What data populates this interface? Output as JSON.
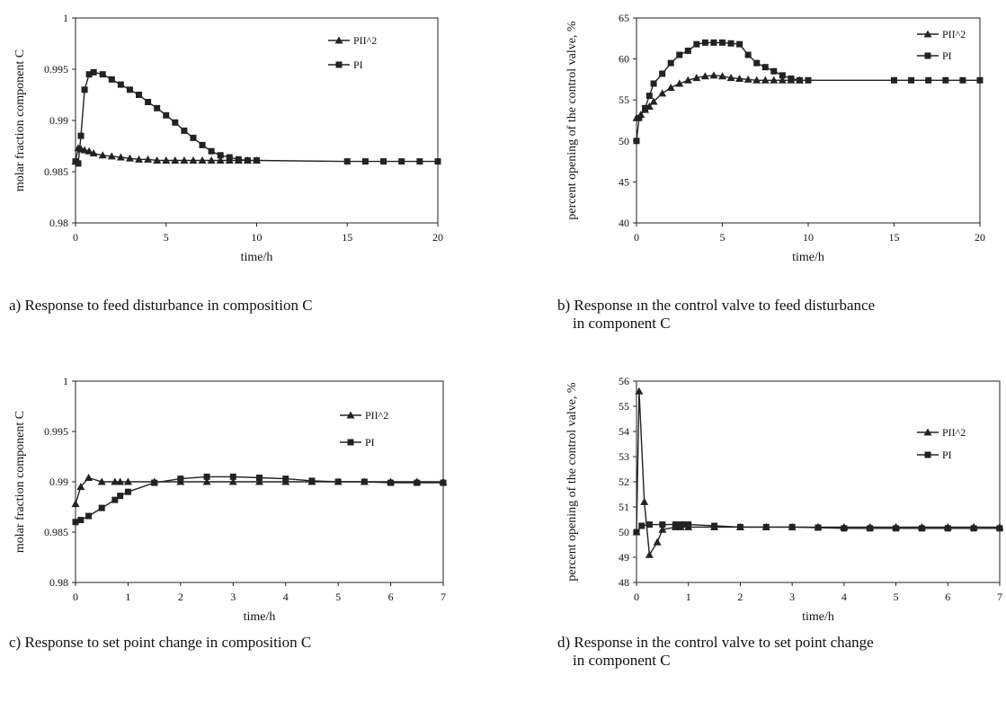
{
  "charts": [
    {
      "type": "line",
      "ylabel": "molar fraction component C",
      "xlabel": "time/h",
      "xlim": [
        0,
        20
      ],
      "ylim": [
        0.98,
        1
      ],
      "xticks": [
        0,
        5,
        10,
        15,
        20
      ],
      "yticks": [
        0.98,
        0.985,
        0.99,
        0.995,
        1
      ],
      "ytick_labels": [
        "0.98",
        "0.985",
        "0.99",
        "0.995",
        "1"
      ],
      "grid": false,
      "legend_position": "top-right",
      "series": [
        {
          "name": "PII^2",
          "marker": "triangle",
          "x": [
            0,
            0.15,
            0.3,
            0.5,
            0.75,
            1,
            1.5,
            2,
            2.5,
            3,
            3.5,
            4,
            4.5,
            5,
            5.5,
            6,
            6.5,
            7,
            7.5,
            8,
            8.5,
            9,
            9.5,
            10
          ],
          "y": [
            0.986,
            0.9873,
            0.9872,
            0.9871,
            0.987,
            0.9868,
            0.9866,
            0.9865,
            0.9864,
            0.9863,
            0.9862,
            0.9862,
            0.9861,
            0.9861,
            0.9861,
            0.9861,
            0.9861,
            0.9861,
            0.9861,
            0.9861,
            0.9861,
            0.9861,
            0.9861,
            0.9861
          ]
        },
        {
          "name": "PI",
          "marker": "square",
          "x": [
            0,
            0.15,
            0.3,
            0.5,
            0.75,
            1,
            1.5,
            2,
            2.5,
            3,
            3.5,
            4,
            4.5,
            5,
            5.5,
            6,
            6.5,
            7,
            7.5,
            8,
            8.5,
            9,
            9.5,
            10,
            15,
            16,
            17,
            18,
            19,
            20
          ],
          "y": [
            0.986,
            0.9858,
            0.9885,
            0.993,
            0.9945,
            0.9947,
            0.9945,
            0.994,
            0.9935,
            0.993,
            0.9925,
            0.9918,
            0.9912,
            0.9905,
            0.9898,
            0.989,
            0.9883,
            0.9876,
            0.987,
            0.9866,
            0.9864,
            0.9862,
            0.9861,
            0.9861,
            0.986,
            0.986,
            0.986,
            0.986,
            0.986,
            0.986
          ]
        }
      ]
    },
    {
      "type": "line",
      "ylabel": "percent opening of the control valve, %",
      "xlabel": "time/h",
      "xlim": [
        0,
        20
      ],
      "ylim": [
        40,
        65
      ],
      "xticks": [
        0,
        5,
        10,
        15,
        20
      ],
      "yticks": [
        40,
        45,
        50,
        55,
        60,
        65
      ],
      "ytick_labels": [
        "40",
        "45",
        "50",
        "55",
        "60",
        "65"
      ],
      "grid": false,
      "legend_position": "top-right",
      "series": [
        {
          "name": "PII^2",
          "marker": "triangle",
          "x": [
            0,
            0.25,
            0.5,
            0.75,
            1,
            1.5,
            2,
            2.5,
            3,
            3.5,
            4,
            4.5,
            5,
            5.5,
            6,
            6.5,
            7,
            7.5,
            8,
            8.5,
            9,
            9.5
          ],
          "y": [
            52.8,
            53.2,
            53.8,
            54.2,
            54.8,
            55.8,
            56.5,
            57.0,
            57.4,
            57.7,
            57.9,
            58.0,
            57.9,
            57.7,
            57.6,
            57.5,
            57.4,
            57.4,
            57.4,
            57.4,
            57.4,
            57.4
          ]
        },
        {
          "name": "PI",
          "marker": "square",
          "x": [
            0,
            0.15,
            0.5,
            0.75,
            1,
            1.5,
            2,
            2.5,
            3,
            3.5,
            4,
            4.5,
            5,
            5.5,
            6,
            6.5,
            7,
            7.5,
            8,
            8.5,
            9,
            9.5,
            10,
            15,
            16,
            17,
            18,
            19,
            20
          ],
          "y": [
            50,
            52.8,
            54,
            55.5,
            57,
            58.2,
            59.5,
            60.5,
            61.0,
            61.8,
            62.0,
            62.0,
            62.0,
            61.9,
            61.8,
            60.5,
            59.5,
            59.0,
            58.5,
            58.0,
            57.6,
            57.4,
            57.4,
            57.4,
            57.4,
            57.4,
            57.4,
            57.4,
            57.4
          ]
        }
      ]
    },
    {
      "type": "line",
      "ylabel": "molar fraction component C",
      "xlabel": "time/h",
      "xlim": [
        0,
        7
      ],
      "ylim": [
        0.98,
        1
      ],
      "xticks": [
        0,
        1,
        2,
        3,
        4,
        5,
        6,
        7
      ],
      "yticks": [
        0.98,
        0.985,
        0.99,
        0.995,
        1
      ],
      "ytick_labels": [
        "0.98",
        "0.985",
        "0.99",
        "0.995",
        "1"
      ],
      "grid": false,
      "legend_position": "right",
      "series": [
        {
          "name": "PII^2",
          "marker": "triangle",
          "x": [
            0,
            0.1,
            0.25,
            0.5,
            0.75,
            0.85,
            1,
            1.5,
            2,
            2.5,
            3,
            3.5,
            4,
            4.5,
            5,
            5.5,
            6,
            6.5,
            7
          ],
          "y": [
            0.9878,
            0.9895,
            0.9904,
            0.99,
            0.99,
            0.99,
            0.99,
            0.99,
            0.99,
            0.99,
            0.99,
            0.99,
            0.99,
            0.99,
            0.99,
            0.99,
            0.99,
            0.99,
            0.99
          ]
        },
        {
          "name": "PI",
          "marker": "square",
          "x": [
            0,
            0.1,
            0.25,
            0.5,
            0.75,
            0.85,
            1,
            1.5,
            2,
            2.5,
            3,
            3.5,
            4,
            4.5,
            5,
            5.5,
            6,
            6.5,
            7
          ],
          "y": [
            0.986,
            0.9862,
            0.9866,
            0.9874,
            0.9882,
            0.9886,
            0.989,
            0.9899,
            0.9903,
            0.9905,
            0.9905,
            0.9904,
            0.9903,
            0.9901,
            0.99,
            0.99,
            0.9899,
            0.9899,
            0.9899
          ]
        }
      ]
    },
    {
      "type": "line",
      "ylabel": "percent opening of the control valve, %",
      "xlabel": "time/h",
      "xlim": [
        0,
        7
      ],
      "ylim": [
        48,
        56
      ],
      "xticks": [
        0,
        1,
        2,
        3,
        4,
        5,
        6,
        7
      ],
      "yticks": [
        48,
        49,
        50,
        51,
        52,
        53,
        54,
        55,
        56
      ],
      "ytick_labels": [
        "48",
        "49",
        "50",
        "51",
        "52",
        "53",
        "54",
        "55",
        "56"
      ],
      "grid": false,
      "legend_position": "right",
      "series": [
        {
          "name": "PII^2",
          "marker": "triangle",
          "x": [
            0,
            0.05,
            0.15,
            0.25,
            0.4,
            0.5,
            0.75,
            0.85,
            1,
            1.5,
            2,
            2.5,
            3,
            3.5,
            4,
            4.5,
            5,
            5.5,
            6,
            6.5,
            7
          ],
          "y": [
            50,
            55.6,
            51.2,
            49.1,
            49.6,
            50.1,
            50.2,
            50.2,
            50.2,
            50.2,
            50.2,
            50.2,
            50.2,
            50.2,
            50.2,
            50.2,
            50.2,
            50.2,
            50.2,
            50.2,
            50.2
          ]
        },
        {
          "name": "PI",
          "marker": "square",
          "x": [
            0,
            0.1,
            0.25,
            0.5,
            0.75,
            0.85,
            0.9,
            1,
            1.5,
            2,
            2.5,
            3,
            3.5,
            4,
            4.5,
            5,
            5.5,
            6,
            6.5,
            7
          ],
          "y": [
            50,
            50.25,
            50.3,
            50.3,
            50.3,
            50.3,
            50.3,
            50.3,
            50.25,
            50.2,
            50.2,
            50.2,
            50.18,
            50.15,
            50.15,
            50.15,
            50.15,
            50.15,
            50.15,
            50.15
          ]
        }
      ]
    }
  ],
  "captions": [
    "a) Response to feed disturbance in composition C",
    "b) Response ın the control valve to feed disturbance\n    in component C",
    "c) Response to set point change in composition C",
    "d) Response in the control valve to set point change\n    in component C"
  ]
}
